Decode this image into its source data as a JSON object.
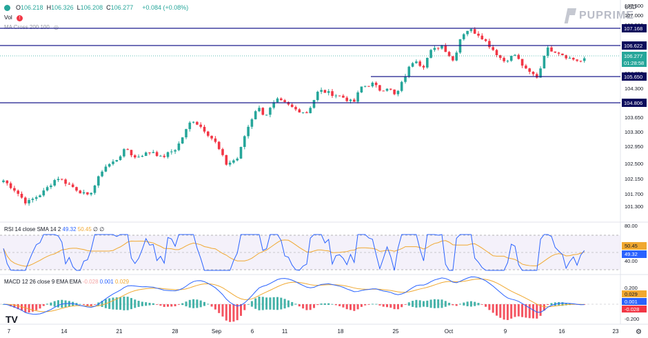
{
  "header": {
    "ohlc": [
      {
        "k": "O",
        "v": "106.218"
      },
      {
        "k": "H",
        "v": "106.326"
      },
      {
        "k": "L",
        "v": "106.208"
      },
      {
        "k": "C",
        "v": "106.277"
      }
    ],
    "change": "+0.084 (+0.08%)",
    "vol_label": "Vol",
    "indicator_label": "MA Cross 200 100",
    "currency": "USD",
    "logo_text": "PUPRIME"
  },
  "rsi_legend": {
    "name": "RSI 14 close SMA 14 2",
    "v1": "49.32",
    "v2": "50.45",
    "v3": "∅",
    "v4": "∅"
  },
  "macd_legend": {
    "name": "MACD 12 26 close 9 EMA EMA",
    "v1": "-0.028",
    "v2": "0.001",
    "v3": "0.029"
  },
  "colors": {
    "up": "#26a69a",
    "down": "#f23645",
    "level_line": "#1a1a8c",
    "rsi": "#2962ff",
    "rsi_ma": "#f0a830",
    "macd": "#2962ff",
    "signal": "#f0a830",
    "rsi_band": "#7e57c2"
  },
  "chart_data": {
    "type": "candlestick",
    "y_axis": {
      "min": 101.3,
      "max": 107.5,
      "ticks": [
        "107.500",
        "107.000",
        "106.500",
        "105.500",
        "105.000",
        "104.650",
        "104.300",
        "103.950",
        "103.650",
        "103.300",
        "102.950",
        "102.500",
        "102.150",
        "101.700",
        "101.300"
      ]
    },
    "x_axis": {
      "ticks": [
        "7",
        "14",
        "21",
        "28",
        "Sep",
        "6",
        "11",
        "18",
        "25",
        "Oct",
        "9",
        "16",
        "23"
      ]
    },
    "horizontal_levels": [
      {
        "value": 107.168,
        "label": "107.168"
      },
      {
        "value": 106.622,
        "label": "106.622"
      },
      {
        "value": 105.65,
        "label": "105.650",
        "start_tick": "18"
      },
      {
        "value": 104.806,
        "label": "104.806"
      }
    ],
    "last_price": {
      "value": "106.277",
      "countdown": "01:28:58"
    },
    "price_path": [
      [
        0,
        102.5
      ],
      [
        3,
        102.2
      ],
      [
        6,
        101.8
      ],
      [
        10,
        102.1
      ],
      [
        14,
        102.6
      ],
      [
        18,
        102.3
      ],
      [
        22,
        102.0
      ],
      [
        24,
        102.4
      ],
      [
        26,
        102.9
      ],
      [
        29,
        103.1
      ],
      [
        32,
        103.5
      ],
      [
        34,
        103.2
      ],
      [
        36,
        103.3
      ],
      [
        39,
        103.4
      ],
      [
        41,
        103.2
      ],
      [
        45,
        103.5
      ],
      [
        49,
        104.4
      ],
      [
        52,
        104.1
      ],
      [
        55,
        103.7
      ],
      [
        58,
        103.0
      ],
      [
        61,
        103.2
      ],
      [
        63,
        104.0
      ],
      [
        66,
        104.8
      ],
      [
        68,
        104.5
      ],
      [
        71,
        105.0
      ],
      [
        73,
        104.9
      ],
      [
        76,
        104.7
      ],
      [
        79,
        104.6
      ],
      [
        82,
        105.3
      ],
      [
        85,
        105.2
      ],
      [
        88,
        105.1
      ],
      [
        91,
        104.9
      ],
      [
        93,
        105.4
      ],
      [
        96,
        105.5
      ],
      [
        98,
        105.3
      ],
      [
        100,
        105.4
      ],
      [
        102,
        105.1
      ],
      [
        105,
        105.9
      ],
      [
        107,
        106.3
      ],
      [
        109,
        106.0
      ],
      [
        111,
        106.5
      ],
      [
        114,
        106.7
      ],
      [
        117,
        106.2
      ],
      [
        119,
        107.0
      ],
      [
        121,
        107.2
      ],
      [
        124,
        107.0
      ],
      [
        127,
        106.6
      ],
      [
        130,
        106.2
      ],
      [
        133,
        106.4
      ],
      [
        136,
        105.9
      ],
      [
        139,
        105.7
      ],
      [
        141,
        106.6
      ],
      [
        144,
        106.5
      ],
      [
        147,
        106.3
      ],
      [
        150,
        106.2
      ],
      [
        152,
        106.28
      ]
    ],
    "rsi": {
      "ticks": [
        "80.00",
        "40.00"
      ],
      "upper_band": 70,
      "lower_band": 30,
      "last": "49.32",
      "ma_last": "50.45"
    },
    "macd": {
      "ticks": [
        "0.200",
        "-0.200"
      ],
      "last_macd": "0.001",
      "last_signal": "0.029",
      "last_hist": "-0.028"
    }
  }
}
